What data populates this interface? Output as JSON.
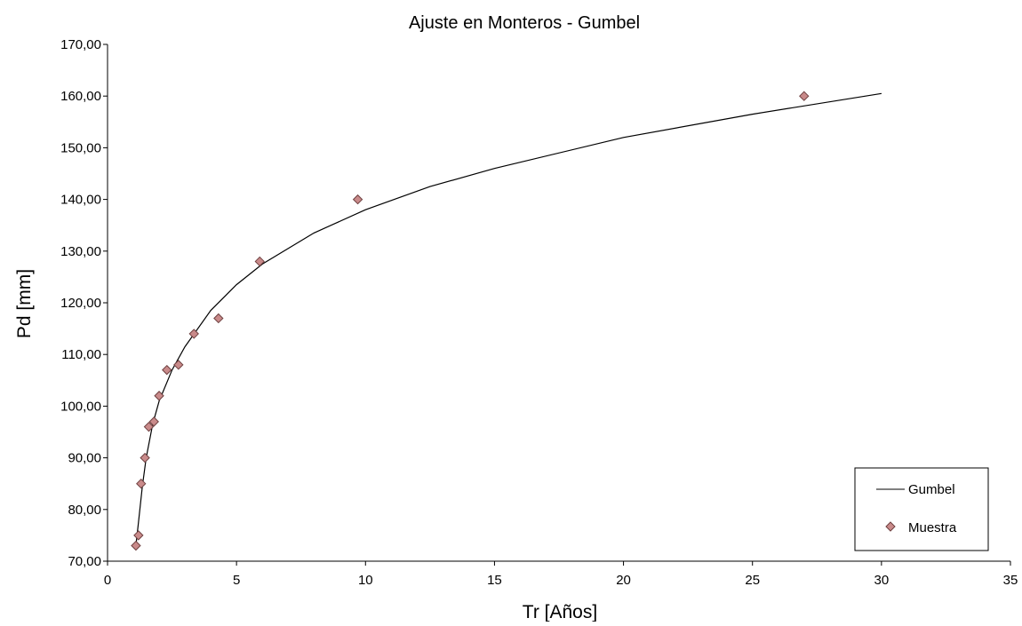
{
  "colors": {
    "background": "#ffffff",
    "axis": "#000000",
    "gumbel_line": "#000000",
    "marker_fill": "#c98a8a",
    "marker_stroke": "#6e4040"
  },
  "chart_data": {
    "type": "scatter",
    "title": "Ajuste en Monteros - Gumbel",
    "xlabel": "Tr [Años]",
    "ylabel": "Pd [mm]",
    "xlim": [
      0,
      35
    ],
    "ylim": [
      70,
      170
    ],
    "x_ticks": [
      0,
      5,
      10,
      15,
      20,
      25,
      30,
      35
    ],
    "x_tick_labels": [
      "0",
      "5",
      "10",
      "15",
      "20",
      "25",
      "30",
      "35"
    ],
    "y_ticks": [
      70,
      80,
      90,
      100,
      110,
      120,
      130,
      140,
      150,
      160,
      170
    ],
    "y_tick_labels": [
      "70,00",
      "80,00",
      "90,00",
      "100,00",
      "110,00",
      "120,00",
      "130,00",
      "140,00",
      "150,00",
      "160,00",
      "170,00"
    ],
    "grid": false,
    "legend_position": "bottom-right",
    "series": [
      {
        "name": "Gumbel",
        "kind": "line",
        "x": [
          1.1,
          1.2,
          1.35,
          1.5,
          1.75,
          2.0,
          2.5,
          3.0,
          4.0,
          5.0,
          6.0,
          8.0,
          10.0,
          12.5,
          15.0,
          20.0,
          25.0,
          30.0
        ],
        "y": [
          73.0,
          77.5,
          84.5,
          90.0,
          96.5,
          101.0,
          107.0,
          111.5,
          118.5,
          123.5,
          127.5,
          133.5,
          138.0,
          142.5,
          146.0,
          152.0,
          156.5,
          160.5
        ]
      },
      {
        "name": "Muestra",
        "kind": "scatter",
        "x": [
          1.1,
          1.2,
          1.3,
          1.45,
          1.6,
          1.8,
          2.0,
          2.3,
          2.75,
          3.35,
          4.3,
          5.9,
          9.7,
          27.0
        ],
        "y": [
          73.0,
          75.0,
          85.0,
          90.0,
          96.0,
          97.0,
          102.0,
          107.0,
          108.0,
          114.0,
          117.0,
          128.0,
          140.0,
          160.0
        ]
      }
    ]
  }
}
